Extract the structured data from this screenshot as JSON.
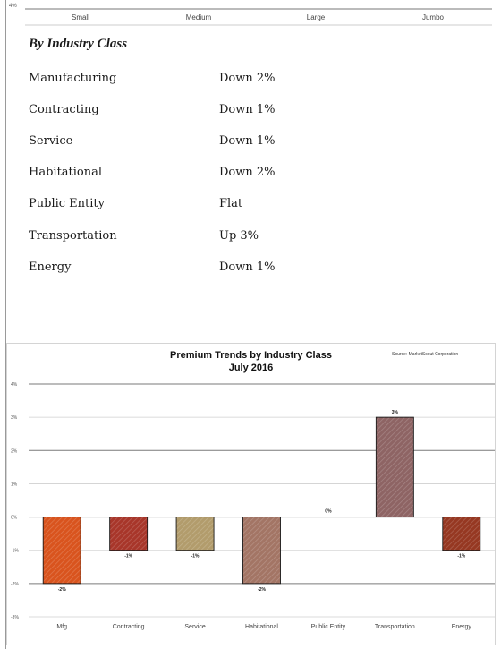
{
  "top_chart": {
    "tick_label": "4%",
    "categories": [
      "Small",
      "Medium",
      "Large",
      "Jumbo"
    ]
  },
  "industry": {
    "title": "By Industry Class",
    "rows": [
      {
        "name": "Manufacturing",
        "value": "Down 2%"
      },
      {
        "name": "Contracting",
        "value": "Down 1%"
      },
      {
        "name": "Service",
        "value": "Down 1%"
      },
      {
        "name": "Habitational",
        "value": "Down 2%"
      },
      {
        "name": "Public Entity",
        "value": "Flat"
      },
      {
        "name": "Transportation",
        "value": "Up 3%"
      },
      {
        "name": "Energy",
        "value": "Down 1%"
      }
    ]
  },
  "chart_data": {
    "type": "bar",
    "title": "Premium Trends by Industry Class",
    "subtitle": "July 2016",
    "source": "Source: MarketScout Corporation",
    "xlabel": "",
    "ylabel": "",
    "categories": [
      "Mfg",
      "Contracting",
      "Service",
      "Habitational",
      "Public Entity",
      "Transportation",
      "Energy"
    ],
    "values": [
      -2,
      -1,
      -1,
      -2,
      0,
      3,
      -1
    ],
    "data_labels": [
      "-2%",
      "-1%",
      "-1%",
      "-2%",
      "0%",
      "3%",
      "-1%"
    ],
    "yticks": [
      4,
      3,
      2,
      1,
      0,
      -1,
      -2,
      -3
    ],
    "ytick_labels": [
      "4%",
      "3%",
      "2%",
      "1%",
      "0%",
      "-1%",
      "-2%",
      "-3%"
    ],
    "ylim": [
      -3,
      4
    ],
    "grid": true,
    "colors": [
      "#d9541e",
      "#a8362a",
      "#b29c6c",
      "#a37565",
      "#a37565",
      "#8e6464",
      "#963822"
    ]
  }
}
